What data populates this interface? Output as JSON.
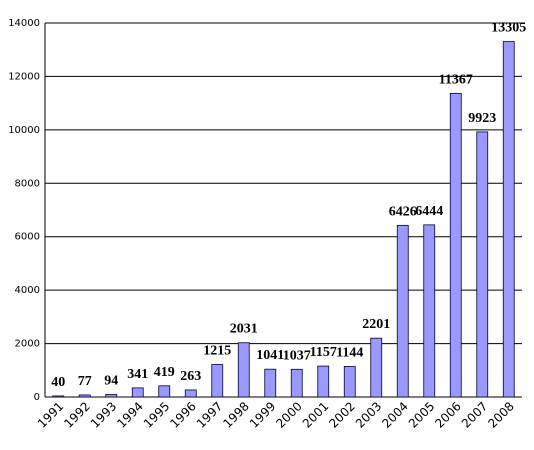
{
  "chart_data": {
    "type": "bar",
    "categories": [
      "1991",
      "1992",
      "1993",
      "1994",
      "1995",
      "1996",
      "1997",
      "1998",
      "1999",
      "2000",
      "2001",
      "2002",
      "2003",
      "2004",
      "2005",
      "2006",
      "2007",
      "2008"
    ],
    "values": [
      40,
      77,
      94,
      341,
      419,
      263,
      1215,
      2031,
      1041,
      1037,
      1157,
      1144,
      2201,
      6426,
      6444,
      11367,
      9923,
      13305
    ],
    "color": "#9999ff",
    "ylim": [
      0,
      14000
    ],
    "yticks": [
      0,
      2000,
      4000,
      6000,
      8000,
      10000,
      12000,
      14000
    ],
    "grid": true
  }
}
